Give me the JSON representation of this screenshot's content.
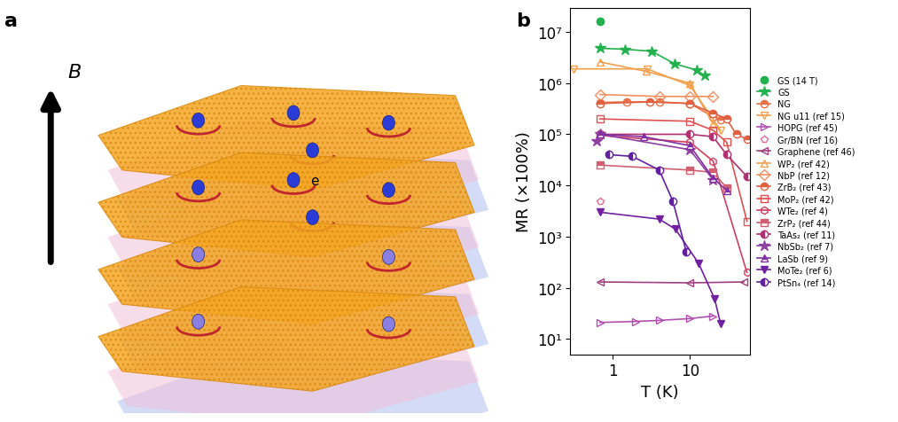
{
  "diagram": {
    "panel_label": "a",
    "field_label": "B",
    "electron_label": "e"
  },
  "chart_data": {
    "panel_label": "b",
    "type": "line",
    "x_label": "T (K)",
    "y_label": "MR (×100%)",
    "log": true,
    "legend": "center left",
    "xlim": [
      0.28,
      60
    ],
    "ylim": [
      5,
      30000000
    ],
    "xticks": [
      1,
      10
    ],
    "yticks": [
      {
        "value": 10,
        "label": "10¹"
      },
      {
        "value": 100,
        "label": "10²"
      },
      {
        "value": 1000,
        "label": "10³"
      },
      {
        "value": 10000,
        "label": "10⁴"
      },
      {
        "value": 100000,
        "label": "10⁵"
      },
      {
        "value": 1000000,
        "label": "10⁶"
      },
      {
        "value": 10000000,
        "label": "10⁷"
      }
    ],
    "series": [
      {
        "name": "GS (14 T)",
        "color": "#22b14c",
        "marker": "circle",
        "line_style": "none",
        "x": [
          0.68
        ],
        "values": [
          16000000
        ]
      },
      {
        "name": "GS",
        "color": "#22b14c",
        "marker": "star",
        "line_style": "solid",
        "x": [
          0.68,
          1.42,
          3.2,
          6.3,
          12.2,
          15.6
        ],
        "values": [
          4800000,
          4600000,
          4200000,
          2400000,
          1800000,
          1400000
        ]
      },
      {
        "name": "NG",
        "color": "#e8734a",
        "marker": "half_circle",
        "line_style": "solid",
        "x": [
          0.68,
          1.5,
          4,
          10,
          20,
          25
        ],
        "values": [
          420000,
          430000,
          430000,
          400000,
          220000,
          190000
        ]
      },
      {
        "name": "NG u11 (ref 15)",
        "color": "#f5a04a",
        "marker": "open_triangle_down",
        "line_style": "solid",
        "x": [
          0.31,
          2.8,
          10,
          25
        ],
        "values": [
          1900000,
          1900000,
          900000,
          120000
        ]
      },
      {
        "name": "HOPG (ref 45)",
        "color": "#b050b0",
        "marker": "open_triangle_right",
        "line_style": "solid",
        "x": [
          0.68,
          2,
          4,
          10,
          20
        ],
        "values": [
          21,
          22,
          23,
          25,
          28
        ]
      },
      {
        "name": "Gr/BN (ref 16)",
        "color": "#e07090",
        "marker": "open_pentagon",
        "line_style": "none",
        "x": [
          0.68
        ],
        "values": [
          5000
        ]
      },
      {
        "name": "Graphene (ref 46)",
        "color": "#a04080",
        "marker": "open_triangle_left",
        "line_style": "solid",
        "x": [
          0.68,
          10,
          50
        ],
        "values": [
          130,
          125,
          130
        ]
      },
      {
        "name": "WP₂ (ref 42)",
        "color": "#f0a050",
        "marker": "open_triangle_up",
        "line_style": "solid",
        "x": [
          0.68,
          2.7,
          10,
          20
        ],
        "values": [
          2600000,
          1700000,
          1000000,
          160000
        ]
      },
      {
        "name": "NbP (ref 12)",
        "color": "#f09060",
        "marker": "open_diamond",
        "line_style": "solid",
        "x": [
          0.68,
          4,
          10,
          20
        ],
        "values": [
          600000,
          550000,
          550000,
          550000
        ]
      },
      {
        "name": "ZrB₂ (ref 43)",
        "color": "#e06040",
        "marker": "half_circle",
        "line_style": "solid",
        "x": [
          0.68,
          3,
          10,
          20,
          30,
          40,
          55
        ],
        "values": [
          400000,
          430000,
          400000,
          260000,
          200000,
          100000,
          80000
        ]
      },
      {
        "name": "MoP₂ (ref 42)",
        "color": "#e05050",
        "marker": "open_square",
        "line_style": "solid",
        "x": [
          0.68,
          10,
          20,
          30,
          55
        ],
        "values": [
          200000,
          180000,
          120000,
          70000,
          2000
        ]
      },
      {
        "name": "WTe₂ (ref 4)",
        "color": "#d04060",
        "marker": "open_hexagon",
        "line_style": "solid",
        "x": [
          0.68,
          10,
          20,
          55
        ],
        "values": [
          95000,
          70000,
          30000,
          200
        ]
      },
      {
        "name": "ZrP₂ (ref 44)",
        "color": "#d06070",
        "marker": "half_square",
        "line_style": "solid",
        "x": [
          0.68,
          10,
          20,
          30
        ],
        "values": [
          25000,
          20000,
          18000,
          9000
        ]
      },
      {
        "name": "TaAs₂ (ref 11)",
        "color": "#b03070",
        "marker": "half_circle_left",
        "line_style": "solid",
        "x": [
          0.68,
          10,
          20,
          30,
          55
        ],
        "values": [
          100000,
          100000,
          90000,
          40000,
          15000
        ]
      },
      {
        "name": "NbSb₂ (ref 7)",
        "color": "#9040a0",
        "marker": "star",
        "line_style": "solid",
        "x": [
          0.62,
          0.68,
          10,
          20
        ],
        "values": [
          75000,
          100000,
          50000,
          13000
        ]
      },
      {
        "name": "LaSb (ref 9)",
        "color": "#8030a0",
        "marker": "half_triangle_up",
        "line_style": "solid",
        "x": [
          0.68,
          2.5,
          10,
          20,
          30
        ],
        "values": [
          100000,
          90000,
          60000,
          14000,
          8000
        ]
      },
      {
        "name": "MoTe₂ (ref 6)",
        "color": "#7020a0",
        "marker": "triangle_down",
        "line_style": "solid",
        "x": [
          0.68,
          4,
          6.5,
          13,
          21,
          25
        ],
        "values": [
          3000,
          2200,
          1400,
          300,
          60,
          20
        ]
      },
      {
        "name": "PtSn₄ (ref 14)",
        "color": "#6020a0",
        "marker": "half_circle_left",
        "line_style": "solid",
        "x": [
          0.9,
          1.8,
          4,
          6,
          9
        ],
        "values": [
          40000,
          37000,
          20000,
          5000,
          500
        ]
      }
    ]
  }
}
